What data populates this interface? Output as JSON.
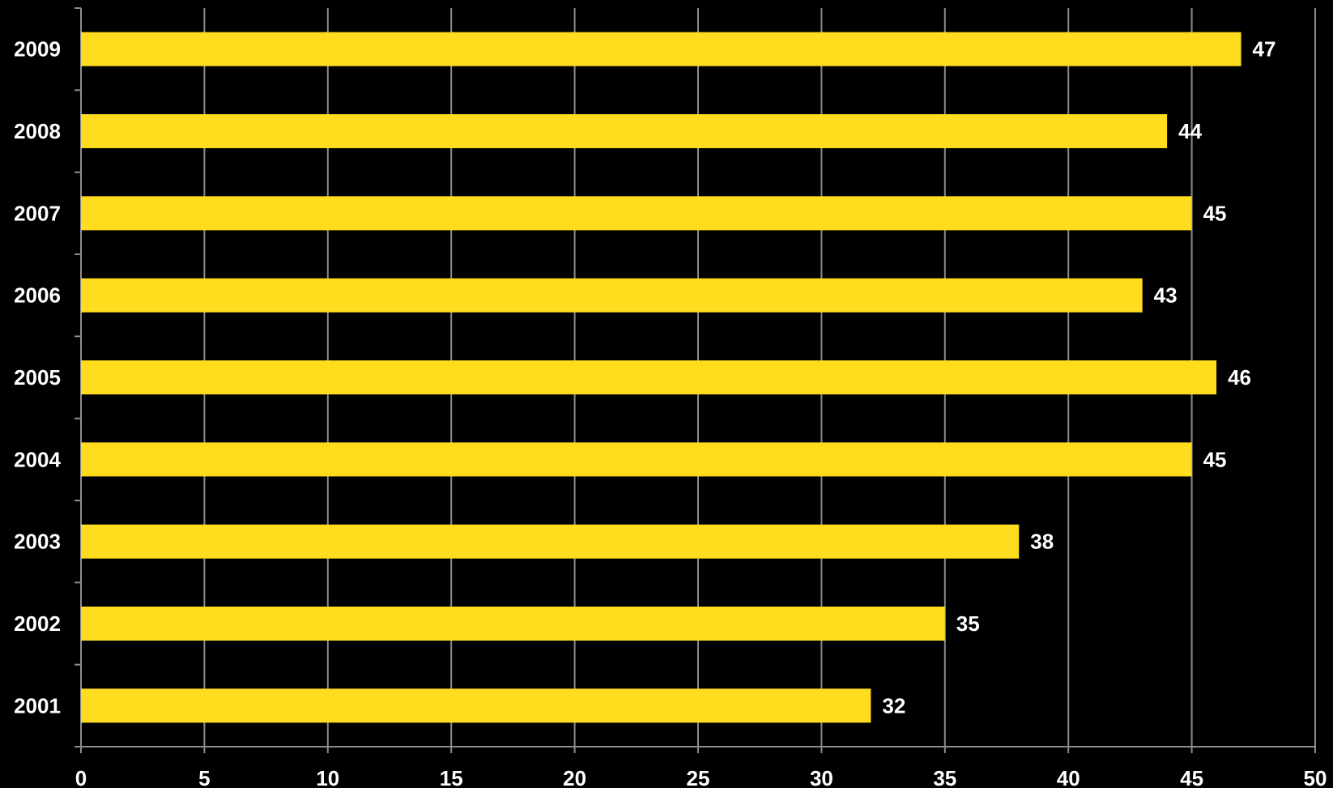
{
  "chart_data": {
    "type": "bar",
    "orientation": "horizontal",
    "title": "",
    "xlabel": "",
    "ylabel": "",
    "categories": [
      "2009",
      "2008",
      "2007",
      "2006",
      "2005",
      "2004",
      "2003",
      "2002",
      "2001"
    ],
    "values": [
      47,
      44,
      45,
      43,
      46,
      45,
      38,
      35,
      32
    ],
    "data_labels": [
      "47",
      "44",
      "45",
      "43",
      "46",
      "45",
      "38",
      "35",
      "32"
    ],
    "xlim": [
      0,
      50
    ],
    "x_ticks": [
      0,
      5,
      10,
      15,
      20,
      25,
      30,
      35,
      40,
      45,
      50
    ],
    "x_tick_labels": [
      "0",
      "5",
      "10",
      "15",
      "20",
      "25",
      "30",
      "35",
      "40",
      "45",
      "50"
    ],
    "grid": true,
    "legend": "none",
    "colors": {
      "background": "#000000",
      "bar": "#ffdc1e",
      "grid": "#8c8c8c",
      "text": "#ffffff"
    }
  }
}
